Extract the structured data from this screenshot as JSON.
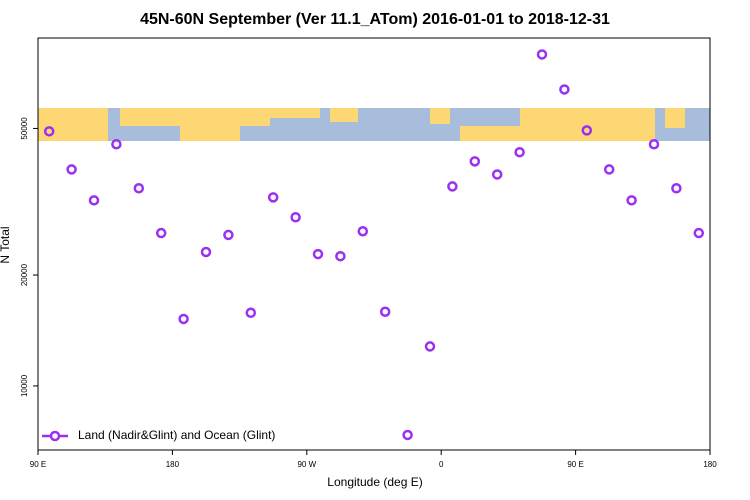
{
  "chart_data": {
    "type": "scatter",
    "title": "45N-60N September (Ver 11.1_ATom)   2016-01-01 to 2018-12-31",
    "x_label": "Longitude (deg E)",
    "y_label": "N Total",
    "series": [
      {
        "name": "Land (Nadir&Glint) and Ocean (Glint)",
        "color": "#9b30f0",
        "x": [
          97.5,
          112.5,
          127.5,
          142.5,
          157.5,
          172.5,
          187.5,
          202.5,
          217.5,
          232.5,
          247.5,
          262.5,
          277.5,
          292.5,
          307.5,
          322.5,
          337.5,
          352.5,
          367.5,
          382.5,
          397.5,
          412.5,
          427.5,
          442.5,
          457.5,
          472.5,
          487.5,
          502.5,
          517.5,
          532.5
        ],
        "values": [
          49100,
          38700,
          31900,
          45300,
          34400,
          26000,
          15200,
          23100,
          25700,
          15800,
          32500,
          28700,
          22800,
          22500,
          26300,
          15900,
          7360,
          12800,
          34800,
          40700,
          37500,
          43100,
          79400,
          63800,
          49400,
          38700,
          31900,
          45300,
          34400,
          26000
        ]
      }
    ],
    "xlim": [
      90,
      540
    ],
    "xticks": [
      {
        "value": 90,
        "label": "90 E"
      },
      {
        "value": 180,
        "label": "180"
      },
      {
        "value": 270,
        "label": "90 W"
      },
      {
        "value": 360,
        "label": "0"
      },
      {
        "value": 450,
        "label": "90 E"
      },
      {
        "value": 540,
        "label": "180"
      }
    ],
    "ylim": [
      6700,
      88000
    ],
    "yticks": [
      10000,
      20000,
      50000
    ],
    "y_log": true,
    "legend_position": "bottom-left"
  }
}
